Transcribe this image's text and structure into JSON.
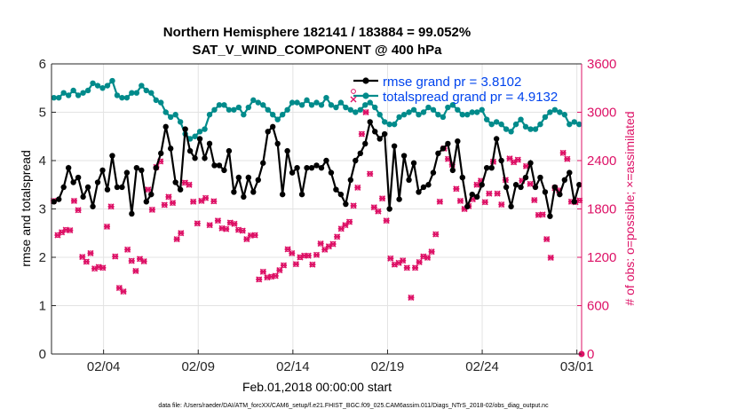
{
  "chart_data": {
    "type": "line",
    "title_line1": "Northern Hemisphere 182141 / 183884 = 99.052%",
    "title_line2": "SAT_V_WIND_COMPONENT @ 400 hPa",
    "xlabel": "Feb.01,2018 00:00:00 start",
    "ylabel_left": "rmse and totalspread",
    "ylabel_right": "# of obs: o=possible; ×=assimilated",
    "footer": "data file: /Users/raeder/DAI/ATM_forcXX/CAM6_setup/f.e21.FHIST_BGC.f09_025.CAM6assim.011/Diags_NTrS_2018-02/obs_diag_output.nc",
    "xlim": [
      1,
      29
    ],
    "ylim_left": [
      0,
      6
    ],
    "ylim_right": [
      0,
      3600
    ],
    "x_ticks": [
      3.75,
      8.75,
      13.75,
      18.75,
      23.75,
      28.75
    ],
    "x_tick_labels": [
      "02/04",
      "02/09",
      "02/14",
      "02/19",
      "02/24",
      "03/01"
    ],
    "y_left_ticks": [
      "0",
      "1",
      "2",
      "3",
      "4",
      "5",
      "6"
    ],
    "y_right_ticks": [
      "0",
      "600",
      "1200",
      "1800",
      "2400",
      "3000",
      "3600"
    ],
    "grid": true,
    "legend_position": "top-right",
    "colors": {
      "rmse": "#000000",
      "totalspread": "#008b8b",
      "obs": "#dd1166",
      "legend_text": "#0044ee"
    },
    "series": [
      {
        "name": "rmse grand pr = 3.8102",
        "axis": "left",
        "values": [
          3.15,
          3.2,
          3.45,
          3.85,
          3.55,
          3.65,
          3.25,
          3.45,
          3.05,
          3.55,
          3.8,
          3.4,
          4.1,
          3.45,
          3.45,
          3.75,
          2.9,
          3.85,
          3.8,
          3.15,
          3.3,
          3.85,
          4.15,
          4.7,
          4.25,
          3.55,
          3.4,
          4.65,
          4.2,
          4.05,
          4.45,
          4.05,
          4.35,
          3.9,
          3.9,
          3.8,
          4.2,
          3.35,
          3.65,
          3.25,
          3.65,
          3.35,
          3.6,
          3.95,
          4.6,
          4.7,
          4.35,
          3.3,
          4.2,
          3.75,
          3.85,
          3.3,
          3.85,
          3.85,
          3.9,
          3.85,
          4.0,
          3.75,
          3.4,
          3.3,
          3.1,
          3.6,
          4.0,
          4.15,
          4.35,
          4.8,
          4.6,
          4.45,
          4.55,
          3.0,
          4.3,
          3.2,
          4.1,
          3.6,
          3.95,
          3.35,
          3.45,
          3.5,
          3.75,
          4.15,
          4.25,
          4.35,
          3.8,
          4.4,
          3.65,
          3.05,
          3.3,
          3.25,
          3.5,
          3.85,
          3.85,
          4.45,
          4.0,
          3.45,
          3.05,
          3.5,
          3.45,
          3.65,
          3.95,
          3.45,
          3.65,
          3.35,
          2.85,
          3.45,
          3.3,
          3.6,
          3.75,
          3.15,
          3.5
        ],
        "display": "line-and-markers"
      },
      {
        "name": "totalspread grand pr = 4.9132",
        "axis": "left",
        "values": [
          5.3,
          5.3,
          5.4,
          5.35,
          5.45,
          5.35,
          5.4,
          5.45,
          5.6,
          5.55,
          5.5,
          5.55,
          5.65,
          5.35,
          5.3,
          5.3,
          5.4,
          5.4,
          5.55,
          5.45,
          5.4,
          5.25,
          5.2,
          5.0,
          4.9,
          4.95,
          4.8,
          4.55,
          4.45,
          4.5,
          4.6,
          4.65,
          4.95,
          5.05,
          5.15,
          5.15,
          5.05,
          5.05,
          5.1,
          4.95,
          5.1,
          5.25,
          5.2,
          5.15,
          5.05,
          4.95,
          4.85,
          4.95,
          5.05,
          5.2,
          5.2,
          5.15,
          5.25,
          5.15,
          5.2,
          5.15,
          5.3,
          5.15,
          5.1,
          5.2,
          5.1,
          5.05,
          5.0,
          5.05,
          5.15,
          5.2,
          5.1,
          4.95,
          4.8,
          4.75,
          4.75,
          4.9,
          4.95,
          5.0,
          5.05,
          4.95,
          5.0,
          5.1,
          5.05,
          4.95,
          4.9,
          5.1,
          5.15,
          5.05,
          4.95,
          4.95,
          5.0,
          5.0,
          5.05,
          4.85,
          4.75,
          4.8,
          4.75,
          4.65,
          4.6,
          4.75,
          4.85,
          4.7,
          4.65,
          4.65,
          4.75,
          4.9,
          5.0,
          5.05,
          5.0,
          4.95,
          4.75,
          4.8,
          4.75
        ],
        "display": "line-and-markers"
      },
      {
        "name": "",
        "axis": "right",
        "values": [
          1900,
          1475,
          1510,
          1540,
          1535,
          1900,
          1785,
          1205,
          1145,
          1250,
          1060,
          1080,
          1070,
          1580,
          1830,
          1210,
          820,
          775,
          1295,
          1155,
          1030,
          1180,
          1150,
          2040,
          1790,
          2320,
          2390,
          1850,
          1950,
          1875,
          1425,
          1500,
          2125,
          2100,
          1890,
          1620,
          1900,
          1935,
          1600,
          1895,
          1655,
          1560,
          1550,
          1630,
          1615,
          1540,
          1530,
          1425,
          1470,
          1475,
          925,
          1020,
          950,
          960,
          970,
          1040,
          1100,
          1300,
          1250,
          1115,
          1200,
          1220,
          1220,
          1110,
          1230,
          1370,
          1295,
          1335,
          1365,
          1455,
          1555,
          1600,
          1640,
          1840,
          2065,
          2730,
          3000,
          2235,
          1820,
          1770,
          1930,
          1655,
          1185,
          1110,
          1130,
          1160,
          1070,
          700,
          1070,
          1140,
          1210,
          1195,
          1270,
          1485,
          1890,
          2550,
          2420,
          2350,
          2050,
          1900,
          1800,
          1835,
          1920,
          2100,
          2150,
          1885,
          1990,
          2385,
          1990,
          1855,
          2160,
          2425,
          2380,
          2410,
          2150,
          2330,
          2110,
          1910,
          1725,
          1730,
          1425,
          1195,
          2060,
          2030,
          2495,
          2420,
          1890,
          1885,
          1905
        ],
        "display": "markers"
      }
    ]
  }
}
